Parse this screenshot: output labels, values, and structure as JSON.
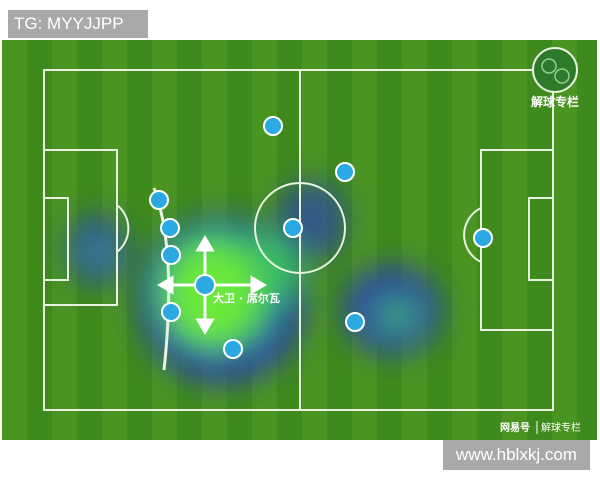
{
  "watermark_top": "TG: MYYJJPP",
  "watermark_bottom": "www.hblxkj.com",
  "logo": {
    "label": "解球专栏"
  },
  "footer": {
    "source": "网易号",
    "column": "解球专栏"
  },
  "player": {
    "name": "大卫 · 席尔瓦"
  },
  "colors": {
    "pitch_dark": "#3f8a1c",
    "pitch_light": "#4f9a25",
    "dot": "#2aa9e3",
    "heat_hot": "#5ee03a",
    "heat_cold": "#2a3fb0"
  }
}
